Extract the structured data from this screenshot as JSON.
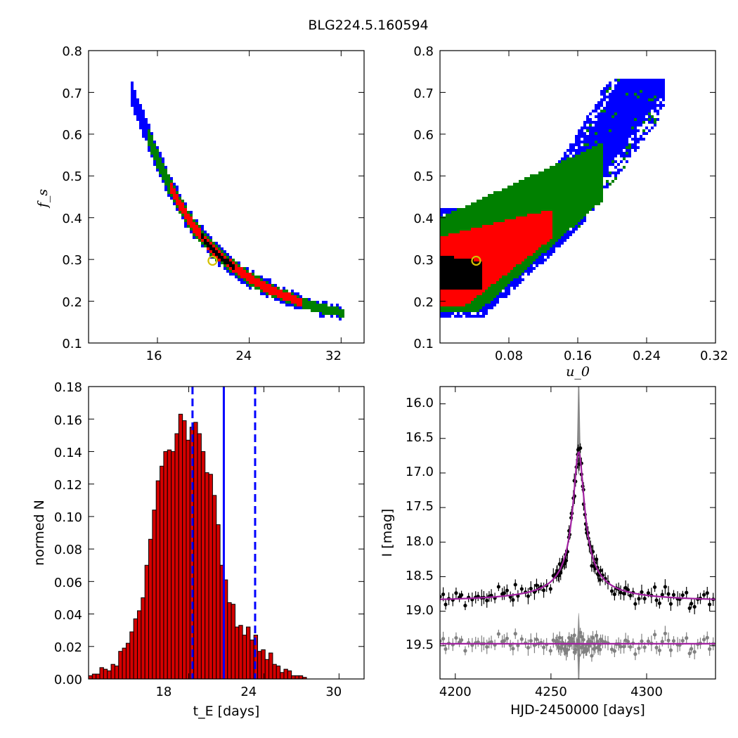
{
  "title": "BLG224.5.160594",
  "chart_data": [
    {
      "type": "heatmap",
      "xlabel": "",
      "ylabel": "f_s",
      "xlim": [
        10,
        34
      ],
      "ylim": [
        0.1,
        0.8
      ],
      "xticks": [
        "16",
        "24",
        "32"
      ],
      "yticks": [
        "0.1",
        "0.2",
        "0.3",
        "0.4",
        "0.5",
        "0.6",
        "0.7",
        "0.8"
      ],
      "ridge_x": [
        13.7,
        15.0,
        16.0,
        17.0,
        18.0,
        19.0,
        20.0,
        21.0,
        22.0,
        23.0,
        24.0,
        25.0,
        26.0,
        27.0,
        28.0,
        29.0,
        30.0,
        31.0,
        32.0
      ],
      "ridge_y": [
        0.7,
        0.61,
        0.54,
        0.48,
        0.43,
        0.385,
        0.35,
        0.32,
        0.295,
        0.275,
        0.255,
        0.24,
        0.225,
        0.214,
        0.203,
        0.193,
        0.185,
        0.178,
        0.173
      ],
      "best_fit": {
        "x": 20.8,
        "y": 0.297
      },
      "level_colors": [
        "#000000",
        "#ff0000",
        "#008000",
        "#0000ff"
      ]
    },
    {
      "type": "heatmap",
      "xlabel": "u_0",
      "ylabel": "",
      "xlim": [
        0.0,
        0.32
      ],
      "ylim": [
        0.1,
        0.8
      ],
      "xticks": [
        "0.08",
        "0.16",
        "0.24",
        "0.32"
      ],
      "yticks": [
        "0.1",
        "0.2",
        "0.3",
        "0.4",
        "0.5",
        "0.6",
        "0.7",
        "0.8"
      ],
      "best_fit": {
        "x": 0.042,
        "y": 0.297
      },
      "level_colors": [
        "#000000",
        "#ff0000",
        "#008000",
        "#0000ff"
      ]
    },
    {
      "type": "bar",
      "xlabel": "t_E [days]",
      "ylabel": "normed N",
      "xlim": [
        10,
        32
      ],
      "ylim": [
        0.0,
        0.18
      ],
      "xticks": [
        "18",
        "24",
        "30"
      ],
      "yticks": [
        "0.00",
        "0.02",
        "0.04",
        "0.06",
        "0.08",
        "0.10",
        "0.12",
        "0.14",
        "0.16",
        "0.18"
      ],
      "bin_start": 10.0,
      "bin_width": 0.3,
      "values": [
        0.002,
        0.003,
        0.003,
        0.007,
        0.006,
        0.005,
        0.009,
        0.008,
        0.017,
        0.019,
        0.022,
        0.029,
        0.037,
        0.042,
        0.05,
        0.07,
        0.086,
        0.104,
        0.122,
        0.131,
        0.14,
        0.141,
        0.14,
        0.151,
        0.163,
        0.159,
        0.147,
        0.155,
        0.158,
        0.151,
        0.14,
        0.127,
        0.126,
        0.113,
        0.095,
        0.07,
        0.061,
        0.047,
        0.046,
        0.032,
        0.033,
        0.027,
        0.032,
        0.024,
        0.027,
        0.017,
        0.018,
        0.012,
        0.016,
        0.009,
        0.008,
        0.004,
        0.006,
        0.005,
        0.002,
        0.002,
        0.002,
        0.001,
        0.0,
        0.0
      ],
      "bar_color": "#d40000",
      "median": 20.8,
      "lower": 18.3,
      "upper": 23.3,
      "line_color": "#0000ff"
    },
    {
      "type": "scatter",
      "xlabel": "HJD-2450000 [days]",
      "ylabel": "I [mag]",
      "xlim": [
        4192,
        4336
      ],
      "ylim": [
        19.98,
        15.75
      ],
      "xticks": [
        "4200",
        "4250",
        "4300"
      ],
      "yticks": [
        "16.0",
        "16.5",
        "17.0",
        "17.5",
        "18.0",
        "18.5",
        "19.0",
        "19.5"
      ],
      "baseline_mag": 18.87,
      "peak_time": 4264.5,
      "peak_mag": 16.7,
      "residual_offset": 19.47,
      "model_color": "#a020a0",
      "data_color": "#000000",
      "residual_color": "#808080"
    }
  ]
}
